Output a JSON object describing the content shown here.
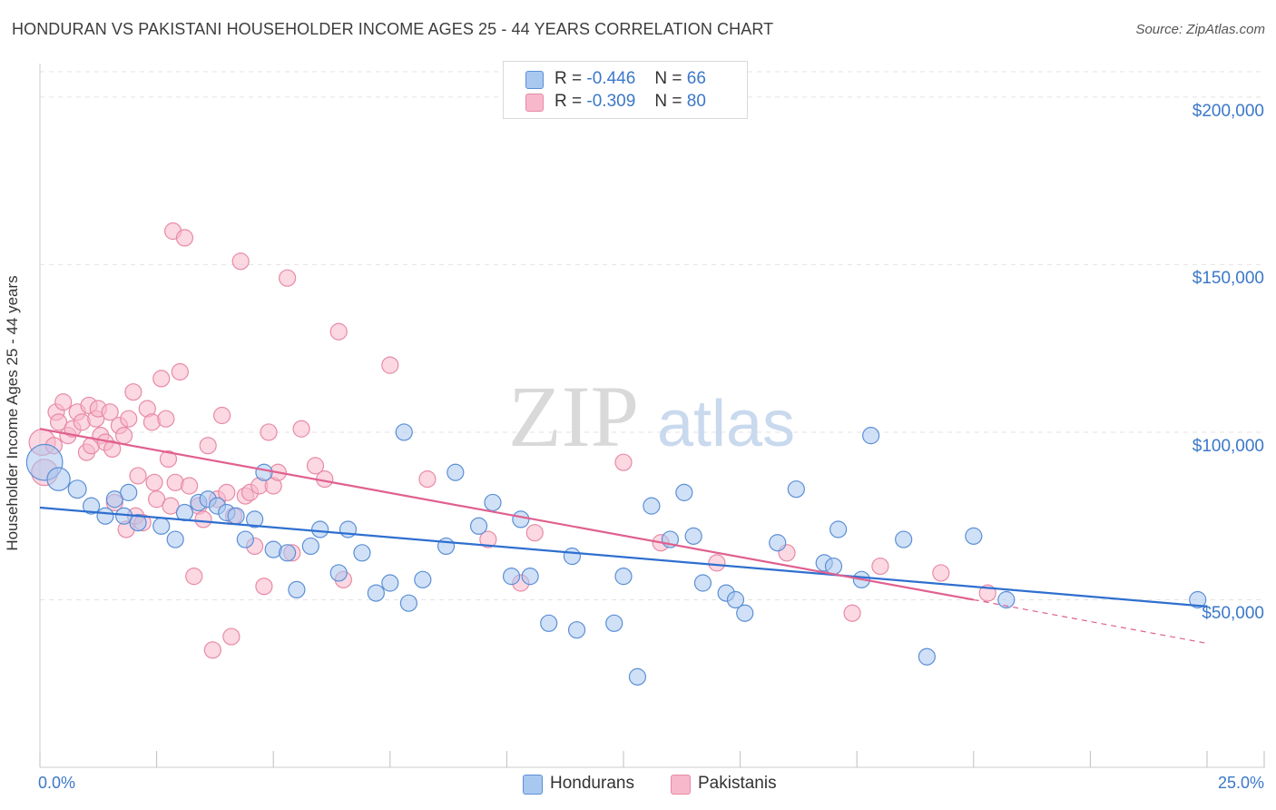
{
  "title": "HONDURAN VS PAKISTANI HOUSEHOLDER INCOME AGES 25 - 44 YEARS CORRELATION CHART",
  "source": "Source: ZipAtlas.com",
  "watermark": {
    "zip": "ZIP",
    "atlas": "atlas"
  },
  "legend": {
    "hondurans": {
      "r_label": "R =",
      "r_value": "-0.446",
      "n_label": "N =",
      "n_value": "66",
      "name": "Hondurans"
    },
    "pakistanis": {
      "r_label": "R =",
      "r_value": "-0.309",
      "n_label": "N =",
      "n_value": "80",
      "name": "Pakistanis"
    }
  },
  "colors": {
    "hondurans_fill": "#a9c8f0",
    "hondurans_stroke": "#5b8fd6",
    "hondurans_line": "#2f6fcf",
    "pakistanis_fill": "#f7b8cb",
    "pakistanis_stroke": "#e88aa6",
    "pakistanis_line": "#e0608f",
    "tick_text": "#3b78c9",
    "grid": "#e3e3e3"
  },
  "chart_data": {
    "type": "scatter",
    "title": "HONDURAN VS PAKISTANI HOUSEHOLDER INCOME AGES 25 - 44 YEARS CORRELATION CHART",
    "xlabel": "",
    "ylabel": "Householder Income Ages 25 - 44 years",
    "xlim": [
      0,
      25
    ],
    "ylim": [
      0,
      210000
    ],
    "x_tick_labels": [
      "0.0%",
      "25.0%"
    ],
    "y_ticks": [
      50000,
      100000,
      150000,
      200000
    ],
    "y_tick_labels": [
      "$50,000",
      "$100,000",
      "$150,000",
      "$200,000"
    ],
    "grid": true,
    "legend_position": "top-center",
    "series": [
      {
        "name": "Hondurans",
        "points": [
          [
            0.1,
            91000,
            2.2
          ],
          [
            0.4,
            86000,
            1.4
          ],
          [
            0.8,
            83000,
            1.1
          ],
          [
            1.1,
            78000,
            1
          ],
          [
            1.4,
            75000,
            1
          ],
          [
            1.6,
            80000,
            1
          ],
          [
            1.8,
            75000,
            1
          ],
          [
            1.9,
            82000,
            1
          ],
          [
            2.1,
            73000,
            1
          ],
          [
            2.6,
            72000,
            1
          ],
          [
            2.9,
            68000,
            1
          ],
          [
            3.1,
            76000,
            1
          ],
          [
            3.4,
            79000,
            1
          ],
          [
            3.6,
            80000,
            1
          ],
          [
            3.8,
            78000,
            1
          ],
          [
            4.0,
            76000,
            1
          ],
          [
            4.2,
            75000,
            1
          ],
          [
            4.4,
            68000,
            1
          ],
          [
            4.6,
            74000,
            1
          ],
          [
            4.8,
            88000,
            1
          ],
          [
            5.0,
            65000,
            1
          ],
          [
            5.3,
            64000,
            1
          ],
          [
            5.5,
            53000,
            1
          ],
          [
            5.8,
            66000,
            1
          ],
          [
            6.0,
            71000,
            1
          ],
          [
            6.4,
            58000,
            1
          ],
          [
            6.6,
            71000,
            1
          ],
          [
            6.9,
            64000,
            1
          ],
          [
            7.2,
            52000,
            1
          ],
          [
            7.5,
            55000,
            1
          ],
          [
            7.8,
            100000,
            1
          ],
          [
            7.9,
            49000,
            1
          ],
          [
            8.2,
            56000,
            1
          ],
          [
            8.7,
            66000,
            1
          ],
          [
            8.9,
            88000,
            1
          ],
          [
            9.4,
            72000,
            1
          ],
          [
            9.7,
            79000,
            1
          ],
          [
            10.1,
            57000,
            1
          ],
          [
            10.3,
            74000,
            1
          ],
          [
            10.5,
            57000,
            1
          ],
          [
            10.9,
            43000,
            1
          ],
          [
            11.4,
            63000,
            1
          ],
          [
            11.5,
            41000,
            1
          ],
          [
            12.3,
            43000,
            1
          ],
          [
            12.5,
            57000,
            1
          ],
          [
            12.8,
            27000,
            1
          ],
          [
            13.1,
            78000,
            1
          ],
          [
            13.5,
            68000,
            1
          ],
          [
            13.8,
            82000,
            1
          ],
          [
            14.0,
            69000,
            1
          ],
          [
            14.2,
            55000,
            1
          ],
          [
            14.7,
            52000,
            1
          ],
          [
            14.9,
            50000,
            1
          ],
          [
            15.1,
            46000,
            1
          ],
          [
            15.8,
            67000,
            1
          ],
          [
            16.2,
            83000,
            1
          ],
          [
            16.8,
            61000,
            1
          ],
          [
            17.0,
            60000,
            1
          ],
          [
            17.1,
            71000,
            1
          ],
          [
            17.6,
            56000,
            1
          ],
          [
            17.8,
            99000,
            1
          ],
          [
            18.5,
            68000,
            1
          ],
          [
            19.0,
            33000,
            1
          ],
          [
            20.0,
            69000,
            1
          ],
          [
            20.7,
            50000,
            1
          ],
          [
            24.8,
            50000,
            1
          ]
        ],
        "trend": {
          "x": [
            0,
            25
          ],
          "y": [
            77500,
            48000
          ]
        }
      },
      {
        "name": "Pakistanis",
        "points": [
          [
            0.05,
            97000,
            1.6
          ],
          [
            0.1,
            88000,
            1.6
          ],
          [
            0.3,
            96000,
            1
          ],
          [
            0.35,
            106000,
            1
          ],
          [
            0.4,
            103000,
            1
          ],
          [
            0.5,
            109000,
            1
          ],
          [
            0.6,
            99000,
            1
          ],
          [
            0.7,
            101000,
            1
          ],
          [
            0.8,
            106000,
            1
          ],
          [
            0.9,
            103000,
            1
          ],
          [
            1.0,
            94000,
            1
          ],
          [
            1.05,
            108000,
            1
          ],
          [
            1.1,
            96000,
            1
          ],
          [
            1.2,
            104000,
            1
          ],
          [
            1.25,
            107000,
            1
          ],
          [
            1.3,
            99000,
            1
          ],
          [
            1.4,
            97000,
            1
          ],
          [
            1.5,
            106000,
            1
          ],
          [
            1.55,
            95000,
            1
          ],
          [
            1.6,
            79000,
            1
          ],
          [
            1.7,
            102000,
            1
          ],
          [
            1.8,
            99000,
            1
          ],
          [
            1.85,
            71000,
            1
          ],
          [
            1.9,
            104000,
            1
          ],
          [
            2.0,
            112000,
            1
          ],
          [
            2.05,
            75000,
            1
          ],
          [
            2.1,
            87000,
            1
          ],
          [
            2.2,
            73000,
            1
          ],
          [
            2.3,
            107000,
            1
          ],
          [
            2.4,
            103000,
            1
          ],
          [
            2.45,
            85000,
            1
          ],
          [
            2.5,
            80000,
            1
          ],
          [
            2.6,
            116000,
            1
          ],
          [
            2.7,
            104000,
            1
          ],
          [
            2.75,
            92000,
            1
          ],
          [
            2.8,
            78000,
            1
          ],
          [
            2.85,
            160000,
            1
          ],
          [
            2.9,
            85000,
            1
          ],
          [
            3.0,
            118000,
            1
          ],
          [
            3.1,
            158000,
            1
          ],
          [
            3.2,
            84000,
            1
          ],
          [
            3.3,
            57000,
            1
          ],
          [
            3.4,
            78000,
            1
          ],
          [
            3.5,
            74000,
            1
          ],
          [
            3.6,
            96000,
            1
          ],
          [
            3.7,
            35000,
            1
          ],
          [
            3.8,
            80000,
            1
          ],
          [
            3.9,
            105000,
            1
          ],
          [
            4.0,
            82000,
            1
          ],
          [
            4.1,
            39000,
            1
          ],
          [
            4.15,
            75000,
            1
          ],
          [
            4.3,
            151000,
            1
          ],
          [
            4.4,
            81000,
            1
          ],
          [
            4.5,
            82000,
            1
          ],
          [
            4.6,
            66000,
            1
          ],
          [
            4.7,
            84000,
            1
          ],
          [
            4.8,
            54000,
            1
          ],
          [
            4.9,
            100000,
            1
          ],
          [
            5.0,
            84000,
            1
          ],
          [
            5.1,
            88000,
            1
          ],
          [
            5.3,
            146000,
            1
          ],
          [
            5.4,
            64000,
            1
          ],
          [
            5.6,
            101000,
            1
          ],
          [
            5.9,
            90000,
            1
          ],
          [
            6.1,
            86000,
            1
          ],
          [
            6.4,
            130000,
            1
          ],
          [
            6.5,
            56000,
            1
          ],
          [
            7.5,
            120000,
            1
          ],
          [
            8.3,
            86000,
            1
          ],
          [
            9.6,
            68000,
            1
          ],
          [
            10.3,
            55000,
            1
          ],
          [
            10.6,
            70000,
            1
          ],
          [
            12.5,
            91000,
            1
          ],
          [
            13.3,
            67000,
            1
          ],
          [
            14.5,
            61000,
            1
          ],
          [
            16.0,
            64000,
            1
          ],
          [
            17.4,
            46000,
            1
          ],
          [
            18.0,
            60000,
            1
          ],
          [
            19.3,
            58000,
            1
          ],
          [
            20.3,
            52000,
            1
          ]
        ],
        "trend": {
          "x": [
            0,
            20
          ],
          "y": [
            101000,
            50000
          ]
        },
        "trend_dashed": {
          "x": [
            20,
            25
          ],
          "y": [
            50000,
            37000
          ]
        }
      }
    ]
  }
}
